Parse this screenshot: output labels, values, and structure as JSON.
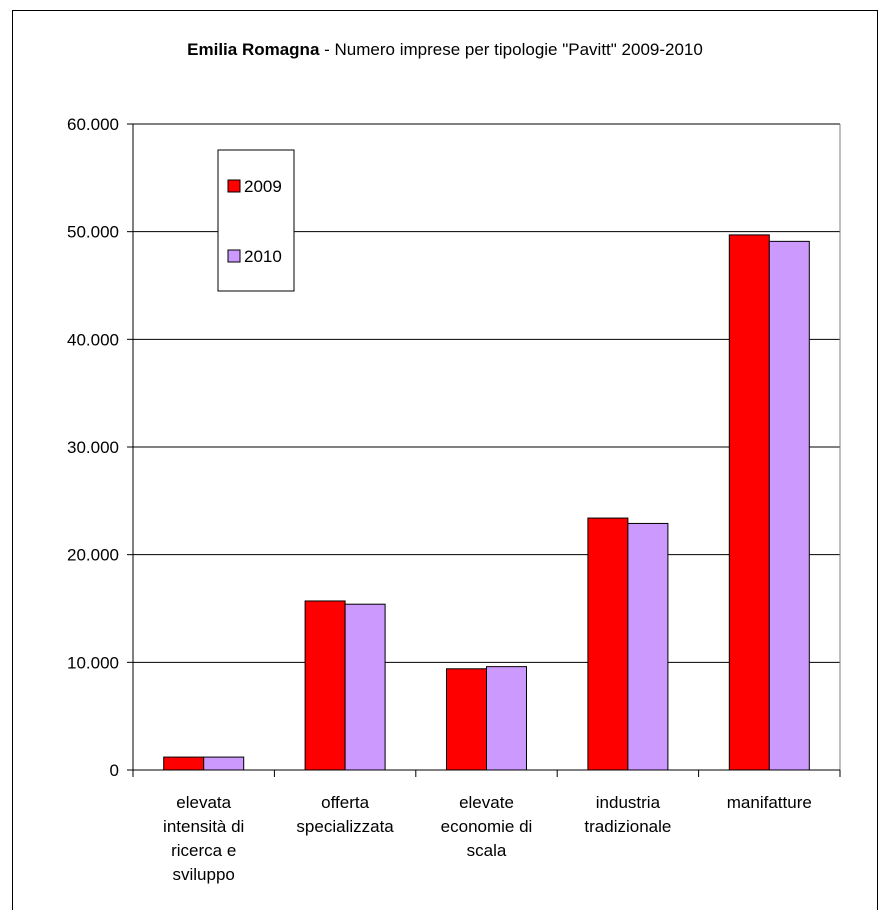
{
  "chart_data": {
    "type": "bar",
    "title_bold": "Emilia Romagna",
    "title_rest": " - Numero imprese per tipologie \"Pavitt\" 2009-2010",
    "categories": [
      [
        "elevata",
        "intensità di",
        "ricerca e",
        "sviluppo"
      ],
      [
        "offerta",
        "specializzata"
      ],
      [
        "elevate",
        "economie di",
        "scala"
      ],
      [
        "industria",
        "tradizionale"
      ],
      [
        "manifatture"
      ]
    ],
    "series": [
      {
        "name": "2009",
        "color": "#ff0000",
        "values": [
          1200,
          15700,
          9400,
          23400,
          49700
        ]
      },
      {
        "name": "2010",
        "color": "#cc99ff",
        "values": [
          1200,
          15400,
          9600,
          22900,
          49100
        ]
      }
    ],
    "ylim": [
      0,
      60000
    ],
    "yticks": [
      0,
      10000,
      20000,
      30000,
      40000,
      50000,
      60000
    ],
    "ytick_labels": [
      "0",
      "10.000",
      "20.000",
      "30.000",
      "40.000",
      "50.000",
      "60.000"
    ],
    "grid": true,
    "legend_position": "top-left"
  }
}
